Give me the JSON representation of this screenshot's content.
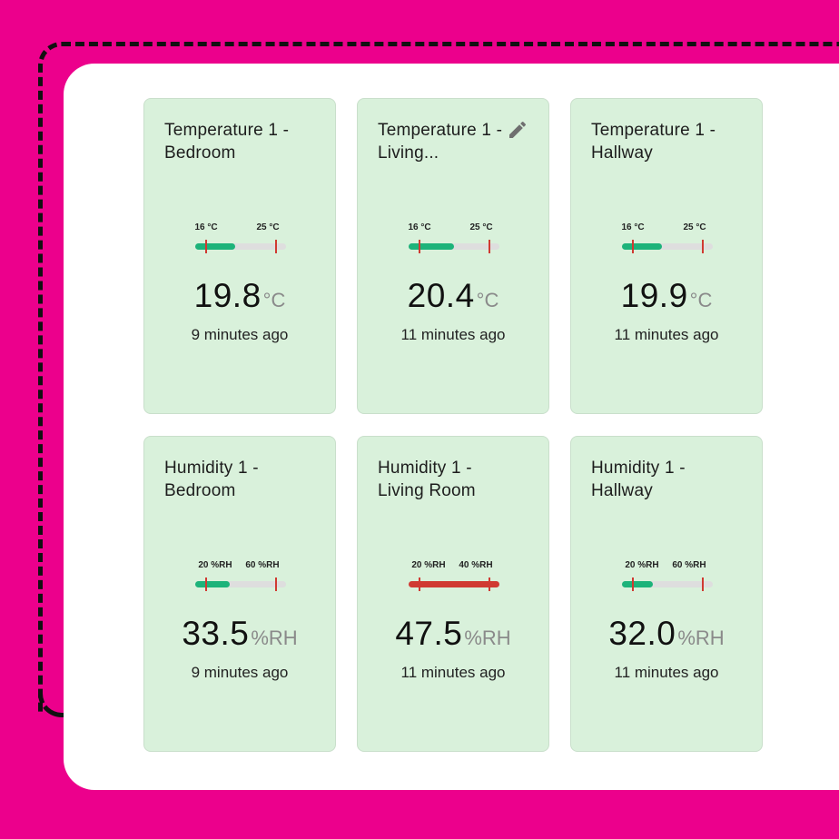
{
  "colors": {
    "background": "#EC008C",
    "card": "#D9F1DB",
    "ok_fill": "#1DB37A",
    "alert_fill": "#D03A32",
    "tick": "#D03A32",
    "track": "#DEDEDE"
  },
  "cards": [
    {
      "title": "Temperature 1 - Bedroom",
      "min_label": "16 °C",
      "max_label": "25 °C",
      "min": 16,
      "max": 25,
      "fill_fraction": 0.44,
      "status": "ok",
      "value": "19.8",
      "unit": "°C",
      "time_ago": "9 minutes ago",
      "edit_icon": false
    },
    {
      "title": "Temperature 1 - Living...",
      "min_label": "16 °C",
      "max_label": "25 °C",
      "min": 16,
      "max": 25,
      "fill_fraction": 0.5,
      "status": "ok",
      "value": "20.4",
      "unit": "°C",
      "time_ago": "11 minutes ago",
      "edit_icon": "pencil-icon"
    },
    {
      "title": "Temperature 1 - Hallway",
      "min_label": "16 °C",
      "max_label": "25 °C",
      "min": 16,
      "max": 25,
      "fill_fraction": 0.44,
      "status": "ok",
      "value": "19.9",
      "unit": "°C",
      "time_ago": "11 minutes ago",
      "edit_icon": false
    },
    {
      "title": "Humidity 1 - Bedroom",
      "min_label": "20 %RH",
      "max_label": "60 %RH",
      "min": 20,
      "max": 60,
      "fill_fraction": 0.38,
      "status": "ok",
      "value": "33.5",
      "unit": "%RH",
      "time_ago": "9 minutes ago",
      "edit_icon": false
    },
    {
      "title": "Humidity 1 - Living Room",
      "min_label": "20 %RH",
      "max_label": "40 %RH",
      "min": 20,
      "max": 40,
      "fill_fraction": 1.0,
      "status": "alert",
      "value": "47.5",
      "unit": "%RH",
      "time_ago": "11 minutes ago",
      "edit_icon": false
    },
    {
      "title": "Humidity 1 - Hallway",
      "min_label": "20 %RH",
      "max_label": "60 %RH",
      "min": 20,
      "max": 60,
      "fill_fraction": 0.34,
      "status": "ok",
      "value": "32.0",
      "unit": "%RH",
      "time_ago": "11 minutes ago",
      "edit_icon": false
    }
  ]
}
